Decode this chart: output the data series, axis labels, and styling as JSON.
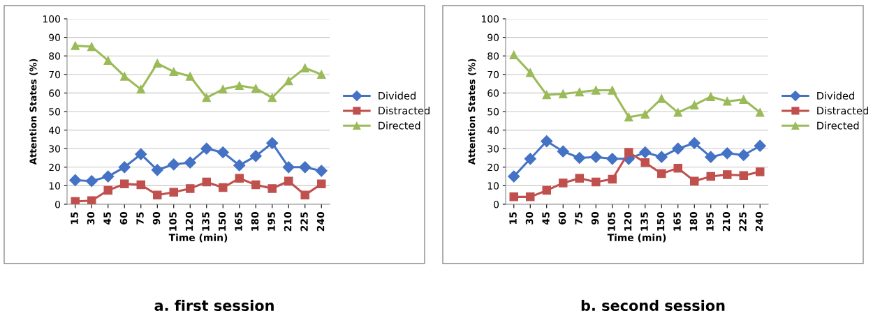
{
  "chart_data": [
    {
      "type": "line",
      "title": "a. first session",
      "xlabel": "Time (min)",
      "ylabel": "Attention States (%)",
      "categories": [
        "15",
        "30",
        "45",
        "60",
        "75",
        "90",
        "105",
        "120",
        "135",
        "150",
        "165",
        "180",
        "195",
        "210",
        "225",
        "240"
      ],
      "ylim": [
        0,
        100
      ],
      "yticks": [
        0,
        10,
        20,
        30,
        40,
        50,
        60,
        70,
        80,
        90,
        100
      ],
      "grid": "y",
      "legend": "right",
      "series": [
        {
          "name": "Divided",
          "color": "#4472c4",
          "marker": "diamond",
          "values": [
            13,
            12.5,
            15,
            20,
            27,
            18.5,
            21.5,
            22.5,
            30,
            28,
            21,
            26,
            33,
            20,
            20,
            18
          ]
        },
        {
          "name": "Distracted",
          "color": "#c0504d",
          "marker": "square",
          "values": [
            1.5,
            2,
            7.5,
            11,
            10.5,
            5,
            6.5,
            8.5,
            12,
            9,
            14,
            10.5,
            8.5,
            12.5,
            5,
            11
          ]
        },
        {
          "name": "Directed",
          "color": "#9bbb59",
          "marker": "triangle",
          "values": [
            85.5,
            85,
            77.5,
            69,
            62,
            76,
            71.5,
            69,
            57.5,
            62,
            64,
            62.5,
            57.5,
            66.5,
            73.5,
            70
          ]
        }
      ]
    },
    {
      "type": "line",
      "title": "b. second session",
      "xlabel": "Time (min)",
      "ylabel": "Attention States (%)",
      "categories": [
        "15",
        "30",
        "45",
        "60",
        "75",
        "90",
        "105",
        "120",
        "135",
        "150",
        "165",
        "180",
        "195",
        "210",
        "225",
        "240"
      ],
      "ylim": [
        0,
        100
      ],
      "yticks": [
        0,
        10,
        20,
        30,
        40,
        50,
        60,
        70,
        80,
        90,
        100
      ],
      "grid": "y",
      "legend": "right",
      "series": [
        {
          "name": "Divided",
          "color": "#4472c4",
          "marker": "diamond",
          "values": [
            15,
            24.5,
            34,
            28.5,
            25,
            25.5,
            24.5,
            24.5,
            28,
            25.5,
            30,
            33,
            25.5,
            27.5,
            26.5,
            31.5
          ]
        },
        {
          "name": "Distracted",
          "color": "#c0504d",
          "marker": "square",
          "values": [
            4,
            4,
            7.5,
            11.5,
            14,
            12,
            13.5,
            28,
            22.5,
            16.5,
            19.5,
            12.5,
            15,
            16,
            15.5,
            17.5
          ]
        },
        {
          "name": "Directed",
          "color": "#9bbb59",
          "marker": "triangle",
          "values": [
            80.5,
            71,
            59,
            59.5,
            60.5,
            61.5,
            61.5,
            47,
            48.5,
            57,
            49.5,
            53.5,
            58,
            55.5,
            56.5,
            49.5
          ]
        }
      ]
    }
  ]
}
